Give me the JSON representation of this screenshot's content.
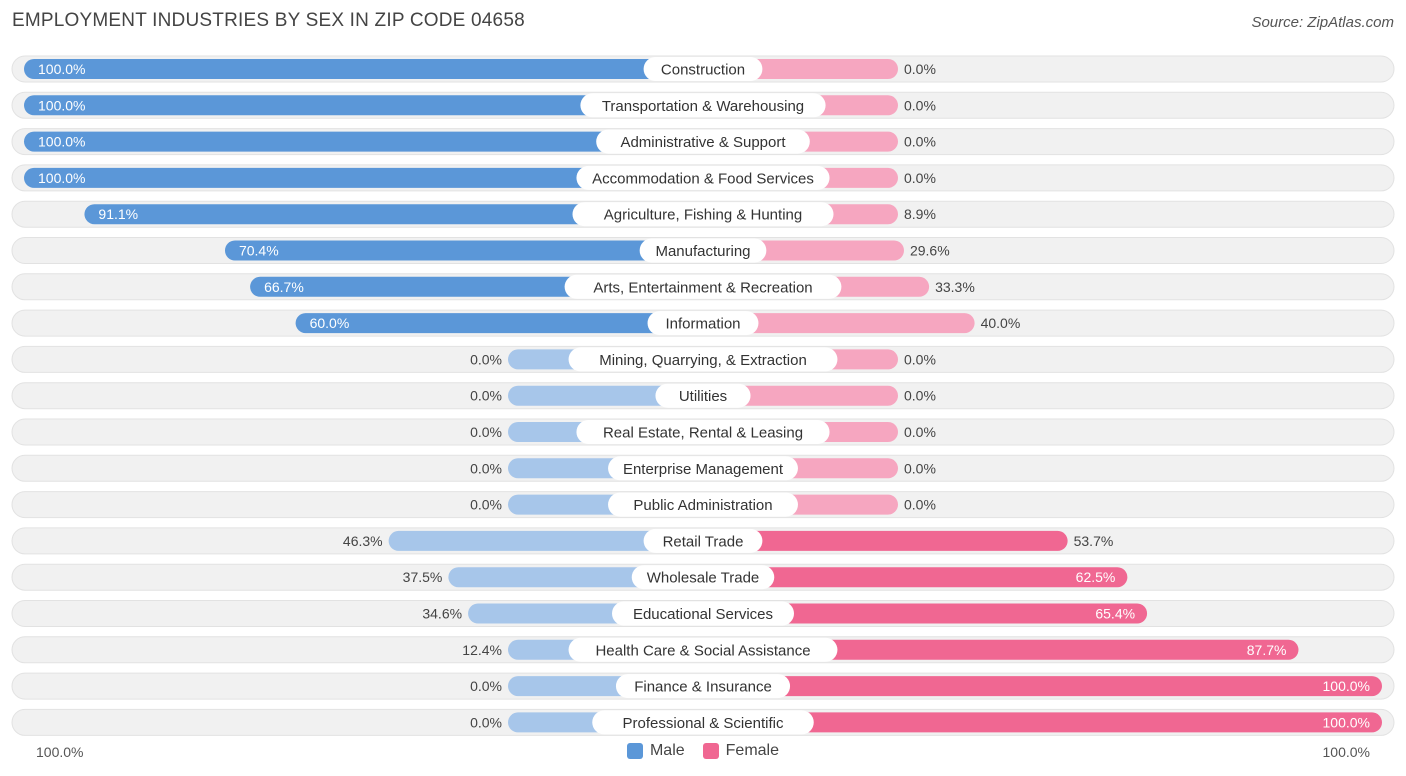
{
  "title": "EMPLOYMENT INDUSTRIES BY SEX IN ZIP CODE 04658",
  "source": "Source: ZipAtlas.com",
  "colors": {
    "male": "#5b97d8",
    "male_light": "#a7c6ea",
    "female": "#f06792",
    "female_light": "#f6a6c0",
    "track": "#f1f1f1"
  },
  "legend": {
    "male_label": "Male",
    "female_label": "Female"
  },
  "axis": {
    "left_label": "100.0%",
    "right_label": "100.0%"
  },
  "chart_data": {
    "type": "bar",
    "orientation": "horizontal-diverging",
    "title": "EMPLOYMENT INDUSTRIES BY SEX IN ZIP CODE 04658",
    "xlim": [
      -100,
      100
    ],
    "categories": [
      "Construction",
      "Transportation & Warehousing",
      "Administrative & Support",
      "Accommodation & Food Services",
      "Agriculture, Fishing & Hunting",
      "Manufacturing",
      "Arts, Entertainment & Recreation",
      "Information",
      "Mining, Quarrying, & Extraction",
      "Utilities",
      "Real Estate, Rental & Leasing",
      "Enterprise Management",
      "Public Administration",
      "Retail Trade",
      "Wholesale Trade",
      "Educational Services",
      "Health Care & Social Assistance",
      "Finance & Insurance",
      "Professional & Scientific"
    ],
    "series": [
      {
        "name": "Male",
        "values": [
          100.0,
          100.0,
          100.0,
          100.0,
          91.1,
          70.4,
          66.7,
          60.0,
          0.0,
          0.0,
          0.0,
          0.0,
          0.0,
          46.3,
          37.5,
          34.6,
          12.4,
          0.0,
          0.0
        ],
        "labels": [
          "100.0%",
          "100.0%",
          "100.0%",
          "100.0%",
          "91.1%",
          "70.4%",
          "66.7%",
          "60.0%",
          "0.0%",
          "0.0%",
          "0.0%",
          "0.0%",
          "0.0%",
          "46.3%",
          "37.5%",
          "34.6%",
          "12.4%",
          "0.0%",
          "0.0%"
        ]
      },
      {
        "name": "Female",
        "values": [
          0.0,
          0.0,
          0.0,
          0.0,
          8.9,
          29.6,
          33.3,
          40.0,
          0.0,
          0.0,
          0.0,
          0.0,
          0.0,
          53.7,
          62.5,
          65.4,
          87.7,
          100.0,
          100.0
        ],
        "labels": [
          "0.0%",
          "0.0%",
          "0.0%",
          "0.0%",
          "8.9%",
          "29.6%",
          "33.3%",
          "40.0%",
          "0.0%",
          "0.0%",
          "0.0%",
          "0.0%",
          "0.0%",
          "53.7%",
          "62.5%",
          "65.4%",
          "87.7%",
          "100.0%",
          "100.0%"
        ]
      }
    ]
  }
}
